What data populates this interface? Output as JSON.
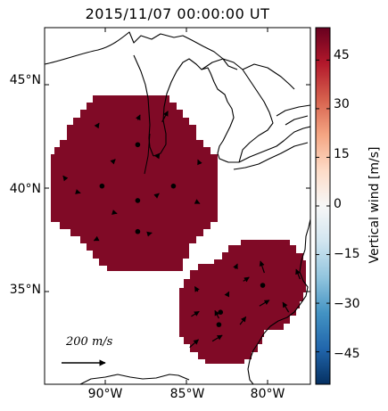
{
  "title": "2015/11/07 00:00:00 UT",
  "map": {
    "lat_ticks": [
      {
        "value": 45,
        "label": "45°N"
      },
      {
        "value": 40,
        "label": "40°N"
      },
      {
        "value": 35,
        "label": "35°N"
      }
    ],
    "lon_ticks": [
      {
        "value": -90,
        "label": "90°W"
      },
      {
        "value": -85,
        "label": "85°W"
      },
      {
        "value": -80,
        "label": "80°W"
      }
    ],
    "field_color": "#800a26",
    "stations": [
      {
        "lon": -88.0,
        "lat": 42.1
      },
      {
        "lon": -90.2,
        "lat": 40.1
      },
      {
        "lon": -88.0,
        "lat": 39.4
      },
      {
        "lon": -85.8,
        "lat": 40.1
      },
      {
        "lon": -88.0,
        "lat": 37.9
      },
      {
        "lon": -80.3,
        "lat": 35.3
      },
      {
        "lon": -82.9,
        "lat": 34.0
      },
      {
        "lon": -83.0,
        "lat": 33.4
      }
    ],
    "wind_vectors": [
      {
        "lon": -90.5,
        "lat": 43.0,
        "u": 10,
        "v": 15
      },
      {
        "lon": -88.0,
        "lat": 43.3,
        "u": 12,
        "v": 25
      },
      {
        "lon": -86.5,
        "lat": 43.2,
        "u": 30,
        "v": 55
      },
      {
        "lon": -92.5,
        "lat": 40.5,
        "u": -8,
        "v": 10
      },
      {
        "lon": -89.5,
        "lat": 41.3,
        "u": 10,
        "v": 10
      },
      {
        "lon": -86.8,
        "lat": 41.5,
        "u": 12,
        "v": 18
      },
      {
        "lon": -84.2,
        "lat": 41.2,
        "u": -8,
        "v": 18
      },
      {
        "lon": -91.7,
        "lat": 39.8,
        "u": 14,
        "v": -4
      },
      {
        "lon": -89.4,
        "lat": 38.8,
        "u": 10,
        "v": -3
      },
      {
        "lon": -86.9,
        "lat": 39.6,
        "u": 18,
        "v": 15
      },
      {
        "lon": -84.3,
        "lat": 39.3,
        "u": 10,
        "v": -5
      },
      {
        "lon": -90.6,
        "lat": 37.5,
        "u": -8,
        "v": -4
      },
      {
        "lon": -87.3,
        "lat": 37.8,
        "u": 14,
        "v": 4
      },
      {
        "lon": -82.0,
        "lat": 36.1,
        "u": 12,
        "v": 25
      },
      {
        "lon": -80.2,
        "lat": 35.9,
        "u": -20,
        "v": 60
      },
      {
        "lon": -78.0,
        "lat": 35.6,
        "u": -20,
        "v": 50
      },
      {
        "lon": -84.3,
        "lat": 35.0,
        "u": -15,
        "v": 25
      },
      {
        "lon": -82.5,
        "lat": 34.8,
        "u": 10,
        "v": 20
      },
      {
        "lon": -81.5,
        "lat": 35.5,
        "u": 30,
        "v": 20
      },
      {
        "lon": -80.5,
        "lat": 34.3,
        "u": 50,
        "v": 30
      },
      {
        "lon": -78.7,
        "lat": 34.0,
        "u": -30,
        "v": 50
      },
      {
        "lon": -84.7,
        "lat": 33.8,
        "u": 40,
        "v": 25
      },
      {
        "lon": -83.0,
        "lat": 33.7,
        "u": -20,
        "v": 40
      },
      {
        "lon": -81.7,
        "lat": 33.4,
        "u": 30,
        "v": 40
      },
      {
        "lon": -83.4,
        "lat": 32.6,
        "u": 50,
        "v": 30
      },
      {
        "lon": -84.8,
        "lat": 32.3,
        "u": 45,
        "v": 40
      }
    ],
    "reference_vector": {
      "label": "200 m/s",
      "value": 200
    }
  },
  "colorbar": {
    "label": "Vertical wind [m/s]",
    "range": [
      -55,
      55
    ],
    "ticks": [
      {
        "value": 45,
        "label": "45"
      },
      {
        "value": 30,
        "label": "30"
      },
      {
        "value": 15,
        "label": "15"
      },
      {
        "value": 0,
        "label": "0"
      },
      {
        "value": -15,
        "label": "−15"
      },
      {
        "value": -30,
        "label": "−30"
      },
      {
        "value": -45,
        "label": "−45"
      }
    ],
    "colors": [
      "#053061",
      "#2166ac",
      "#4393c3",
      "#92c5de",
      "#d1e5f0",
      "#f7f7f7",
      "#fddbc7",
      "#f4a582",
      "#d6604d",
      "#b2182b",
      "#67001f"
    ]
  }
}
